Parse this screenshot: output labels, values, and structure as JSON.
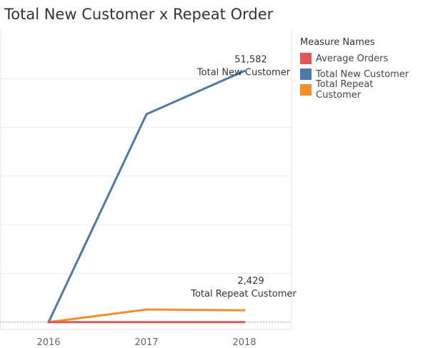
{
  "chart_data": {
    "type": "line",
    "title": "Total New Customer x Repeat Order",
    "xlabel": "",
    "ylabel": "",
    "x": [
      "2016",
      "2017",
      "2018"
    ],
    "ylim": [
      -1500,
      60000
    ],
    "y_gridlines": [
      0,
      10000,
      20000,
      30000,
      40000,
      50000
    ],
    "grid": true,
    "legend": {
      "title": "Measure Names",
      "position": "right",
      "entries": [
        "Average Orders",
        "Total New Customer",
        "Total Repeat Customer"
      ]
    },
    "series": [
      {
        "name": "Average Orders",
        "color": "#e15759",
        "values": [
          0,
          0,
          0
        ]
      },
      {
        "name": "Total New Customer",
        "color": "#4e79a7",
        "values": [
          0,
          42700,
          51582
        ]
      },
      {
        "name": "Total Repeat Customer",
        "color": "#f28e2b",
        "values": [
          0,
          2600,
          2429
        ]
      }
    ],
    "annotations": [
      {
        "series": "Total New Customer",
        "x": "2018",
        "value_label": "51,582",
        "series_label": "Total New Customer"
      },
      {
        "series": "Total Repeat Customer",
        "x": "2018",
        "value_label": "2,429",
        "series_label": "Total Repeat Customer"
      }
    ]
  }
}
